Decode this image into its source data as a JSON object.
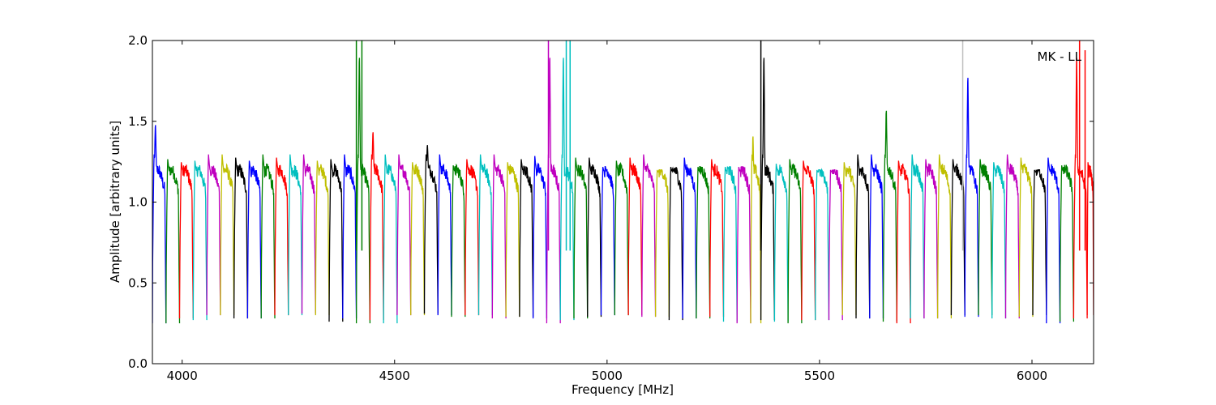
{
  "chart_data": {
    "type": "line",
    "title": "",
    "annotation": "MK - LL",
    "xlabel": "Frequency [MHz]",
    "ylabel": "Amplitude [arbitrary units]",
    "xlim": [
      3930,
      6145
    ],
    "ylim": [
      0.0,
      2.0
    ],
    "xticks": [
      4000,
      4500,
      5000,
      5500,
      6000
    ],
    "xtick_labels": [
      "4000",
      "4500",
      "5000",
      "5500",
      "6000"
    ],
    "yticks": [
      0.0,
      0.5,
      1.0,
      1.5,
      2.0
    ],
    "ytick_labels": [
      "0.0",
      "0.5",
      "1.0",
      "1.5",
      "2.0"
    ],
    "grid": false,
    "legend": "none",
    "channel_width_mhz": 32,
    "channel_start_mhz": 3930,
    "color_cycle": [
      "#0000ff",
      "#008000",
      "#ff0000",
      "#00bfbf",
      "#bf00bf",
      "#bfbf00",
      "#000000"
    ],
    "series": [
      {
        "x_start": 3930,
        "x_end": 3962,
        "color": "#0000ff",
        "peak": 1.53,
        "floor": 0.25
      },
      {
        "x_start": 3962,
        "x_end": 3994,
        "color": "#008000",
        "peak": 1.27,
        "floor": 0.25
      },
      {
        "x_start": 3994,
        "x_end": 4026,
        "color": "#ff0000",
        "peak": 1.25,
        "floor": 0.28
      },
      {
        "x_start": 4026,
        "x_end": 4058,
        "color": "#00bfbf",
        "peak": 1.26,
        "floor": 0.27
      },
      {
        "x_start": 4058,
        "x_end": 4090,
        "color": "#bf00bf",
        "peak": 1.3,
        "floor": 0.3
      },
      {
        "x_start": 4090,
        "x_end": 4122,
        "color": "#bfbf00",
        "peak": 1.3,
        "floor": 0.3
      },
      {
        "x_start": 4122,
        "x_end": 4154,
        "color": "#000000",
        "peak": 1.28,
        "floor": 0.28
      },
      {
        "x_start": 4154,
        "x_end": 4186,
        "color": "#0000ff",
        "peak": 1.26,
        "floor": 0.28
      },
      {
        "x_start": 4186,
        "x_end": 4218,
        "color": "#008000",
        "peak": 1.32,
        "floor": 0.28
      },
      {
        "x_start": 4218,
        "x_end": 4250,
        "color": "#ff0000",
        "peak": 1.28,
        "floor": 0.3
      },
      {
        "x_start": 4250,
        "x_end": 4282,
        "color": "#00bfbf",
        "peak": 1.31,
        "floor": 0.3
      },
      {
        "x_start": 4282,
        "x_end": 4314,
        "color": "#bf00bf",
        "peak": 1.33,
        "floor": 0.31
      },
      {
        "x_start": 4314,
        "x_end": 4346,
        "color": "#bfbf00",
        "peak": 1.26,
        "floor": 0.3
      },
      {
        "x_start": 4346,
        "x_end": 4378,
        "color": "#000000",
        "peak": 1.27,
        "floor": 0.26
      },
      {
        "x_start": 4378,
        "x_end": 4410,
        "color": "#0000ff",
        "peak": 1.32,
        "floor": 0.28
      },
      {
        "x_start": 4410,
        "x_end": 4442,
        "color": "#008000",
        "peak": 2.0,
        "floor": 0.25
      },
      {
        "x_start": 4442,
        "x_end": 4474,
        "color": "#ff0000",
        "peak": 1.48,
        "floor": 0.27
      },
      {
        "x_start": 4474,
        "x_end": 4506,
        "color": "#00bfbf",
        "peak": 1.3,
        "floor": 0.25
      },
      {
        "x_start": 4506,
        "x_end": 4538,
        "color": "#bf00bf",
        "peak": 1.3,
        "floor": 0.3
      },
      {
        "x_start": 4538,
        "x_end": 4570,
        "color": "#bfbf00",
        "peak": 1.25,
        "floor": 0.3
      },
      {
        "x_start": 4570,
        "x_end": 4602,
        "color": "#000000",
        "peak": 1.39,
        "floor": 0.31
      },
      {
        "x_start": 4602,
        "x_end": 4634,
        "color": "#0000ff",
        "peak": 1.35,
        "floor": 0.3
      },
      {
        "x_start": 4634,
        "x_end": 4666,
        "color": "#008000",
        "peak": 1.23,
        "floor": 0.29
      },
      {
        "x_start": 4666,
        "x_end": 4698,
        "color": "#ff0000",
        "peak": 1.27,
        "floor": 0.3
      },
      {
        "x_start": 4698,
        "x_end": 4730,
        "color": "#00bfbf",
        "peak": 1.33,
        "floor": 0.3
      },
      {
        "x_start": 4730,
        "x_end": 4762,
        "color": "#bf00bf",
        "peak": 1.31,
        "floor": 0.28
      },
      {
        "x_start": 4762,
        "x_end": 4794,
        "color": "#bfbf00",
        "peak": 1.25,
        "floor": 0.29
      },
      {
        "x_start": 4794,
        "x_end": 4826,
        "color": "#000000",
        "peak": 1.27,
        "floor": 0.29
      },
      {
        "x_start": 4826,
        "x_end": 4858,
        "color": "#0000ff",
        "peak": 1.29,
        "floor": 0.28
      },
      {
        "x_start": 4858,
        "x_end": 4890,
        "color": "#bf00bf",
        "peak": 2.0,
        "floor": 0.25
      },
      {
        "x_start": 4890,
        "x_end": 4922,
        "color": "#00bfbf",
        "peak": 2.0,
        "floor": 0.27
      },
      {
        "x_start": 4922,
        "x_end": 4954,
        "color": "#008000",
        "peak": 1.28,
        "floor": 0.28
      },
      {
        "x_start": 4954,
        "x_end": 4986,
        "color": "#000000",
        "peak": 1.28,
        "floor": 0.29
      },
      {
        "x_start": 4986,
        "x_end": 5018,
        "color": "#0000ff",
        "peak": 1.22,
        "floor": 0.3
      },
      {
        "x_start": 5018,
        "x_end": 5050,
        "color": "#008000",
        "peak": 1.26,
        "floor": 0.3
      },
      {
        "x_start": 5050,
        "x_end": 5082,
        "color": "#ff0000",
        "peak": 1.28,
        "floor": 0.3
      },
      {
        "x_start": 5082,
        "x_end": 5114,
        "color": "#bf00bf",
        "peak": 1.32,
        "floor": 0.29
      },
      {
        "x_start": 5114,
        "x_end": 5146,
        "color": "#bfbf00",
        "peak": 1.2,
        "floor": 0.29
      },
      {
        "x_start": 5146,
        "x_end": 5178,
        "color": "#000000",
        "peak": 1.22,
        "floor": 0.27
      },
      {
        "x_start": 5178,
        "x_end": 5210,
        "color": "#0000ff",
        "peak": 1.28,
        "floor": 0.28
      },
      {
        "x_start": 5210,
        "x_end": 5242,
        "color": "#008000",
        "peak": 1.22,
        "floor": 0.28
      },
      {
        "x_start": 5242,
        "x_end": 5274,
        "color": "#ff0000",
        "peak": 1.27,
        "floor": 0.29
      },
      {
        "x_start": 5274,
        "x_end": 5306,
        "color": "#00bfbf",
        "peak": 1.22,
        "floor": 0.26
      },
      {
        "x_start": 5306,
        "x_end": 5338,
        "color": "#bf00bf",
        "peak": 1.22,
        "floor": 0.25
      },
      {
        "x_start": 5338,
        "x_end": 5362,
        "color": "#bfbf00",
        "peak": 1.45,
        "floor": 0.25
      },
      {
        "x_start": 5362,
        "x_end": 5394,
        "color": "#000000",
        "peak": 2.0,
        "floor": 0.27
      },
      {
        "x_start": 5394,
        "x_end": 5426,
        "color": "#00bfbf",
        "peak": 1.24,
        "floor": 0.26
      },
      {
        "x_start": 5426,
        "x_end": 5458,
        "color": "#008000",
        "peak": 1.27,
        "floor": 0.25
      },
      {
        "x_start": 5458,
        "x_end": 5490,
        "color": "#ff0000",
        "peak": 1.26,
        "floor": 0.27
      },
      {
        "x_start": 5490,
        "x_end": 5522,
        "color": "#00bfbf",
        "peak": 1.2,
        "floor": 0.27
      },
      {
        "x_start": 5522,
        "x_end": 5554,
        "color": "#bf00bf",
        "peak": 1.2,
        "floor": 0.27
      },
      {
        "x_start": 5554,
        "x_end": 5586,
        "color": "#bfbf00",
        "peak": 1.25,
        "floor": 0.3
      },
      {
        "x_start": 5586,
        "x_end": 5618,
        "color": "#000000",
        "peak": 1.33,
        "floor": 0.28
      },
      {
        "x_start": 5618,
        "x_end": 5650,
        "color": "#0000ff",
        "peak": 1.32,
        "floor": 0.28
      },
      {
        "x_start": 5650,
        "x_end": 5682,
        "color": "#008000",
        "peak": 1.63,
        "floor": 0.26
      },
      {
        "x_start": 5682,
        "x_end": 5714,
        "color": "#ff0000",
        "peak": 1.26,
        "floor": 0.25
      },
      {
        "x_start": 5714,
        "x_end": 5746,
        "color": "#00bfbf",
        "peak": 1.3,
        "floor": 0.28
      },
      {
        "x_start": 5746,
        "x_end": 5778,
        "color": "#bf00bf",
        "peak": 1.27,
        "floor": 0.28
      },
      {
        "x_start": 5778,
        "x_end": 5810,
        "color": "#bfbf00",
        "peak": 1.31,
        "floor": 0.28
      },
      {
        "x_start": 5810,
        "x_end": 5842,
        "color": "#000000",
        "peak": 1.27,
        "floor": 0.3
      },
      {
        "x_start": 5842,
        "x_end": 5874,
        "color": "#0000ff",
        "peak": 1.86,
        "floor": 0.29
      },
      {
        "x_start": 5874,
        "x_end": 5906,
        "color": "#008000",
        "peak": 1.27,
        "floor": 0.3
      },
      {
        "x_start": 5906,
        "x_end": 5938,
        "color": "#00bfbf",
        "peak": 1.25,
        "floor": 0.28
      },
      {
        "x_start": 5938,
        "x_end": 5970,
        "color": "#bf00bf",
        "peak": 1.3,
        "floor": 0.28
      },
      {
        "x_start": 5970,
        "x_end": 6002,
        "color": "#bfbf00",
        "peak": 1.28,
        "floor": 0.29
      },
      {
        "x_start": 6002,
        "x_end": 6034,
        "color": "#000000",
        "peak": 1.2,
        "floor": 0.3
      },
      {
        "x_start": 6034,
        "x_end": 6066,
        "color": "#0000ff",
        "peak": 1.28,
        "floor": 0.25
      },
      {
        "x_start": 6066,
        "x_end": 6098,
        "color": "#008000",
        "peak": 1.23,
        "floor": 0.26
      },
      {
        "x_start": 6098,
        "x_end": 6130,
        "color": "#ff0000",
        "peak": 2.0,
        "floor": 0.28
      },
      {
        "x_start": 6130,
        "x_end": 6145,
        "color": "#ff0000",
        "peak": 1.25,
        "floor": 0.3
      }
    ],
    "spikes": [
      {
        "x": 4410,
        "y": 2.0,
        "color": "#008000"
      },
      {
        "x": 4423,
        "y": 2.0,
        "color": "#008000"
      },
      {
        "x": 4862,
        "y": 2.0,
        "color": "#bf00bf"
      },
      {
        "x": 4904,
        "y": 2.0,
        "color": "#00bfbf"
      },
      {
        "x": 4913,
        "y": 2.0,
        "color": "#00bfbf"
      },
      {
        "x": 5362,
        "y": 2.0,
        "color": "#000000"
      },
      {
        "x": 5837,
        "y": 2.0,
        "color": "#bfbfbf"
      },
      {
        "x": 6112,
        "y": 2.0,
        "color": "#ff0000"
      },
      {
        "x": 6125,
        "y": 1.94,
        "color": "#ff0000"
      }
    ]
  }
}
